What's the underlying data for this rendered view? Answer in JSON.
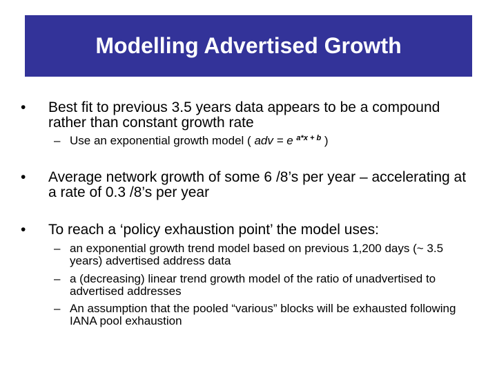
{
  "slide": {
    "title": "Modelling Advertised Growth",
    "title_bg": "#333399",
    "bullets": [
      {
        "text": "Best fit to previous 3.5 years data appears to be a compound rather than constant growth rate",
        "subs": [
          {
            "prefix": "Use an exponential growth model ( ",
            "formula_base": "adv = e",
            "formula_exp": "a*x + b",
            "suffix": " )"
          }
        ]
      },
      {
        "text": "Average network growth of some 6 /8’s per year – accelerating at a rate of 0.3 /8’s per year"
      },
      {
        "text": "To reach a ‘policy exhaustion point’ the model uses:",
        "subs": [
          {
            "text": "an exponential growth trend model based on previous 1,200 days (~ 3.5 years) advertised address data"
          },
          {
            "text": "a (decreasing) linear trend growth model of the ratio of unadvertised to advertised addresses"
          },
          {
            "text": "An assumption that the pooled “various” blocks will be exhausted following IANA pool exhaustion"
          }
        ]
      }
    ],
    "bullet_char": "•",
    "dash_char": "–"
  }
}
